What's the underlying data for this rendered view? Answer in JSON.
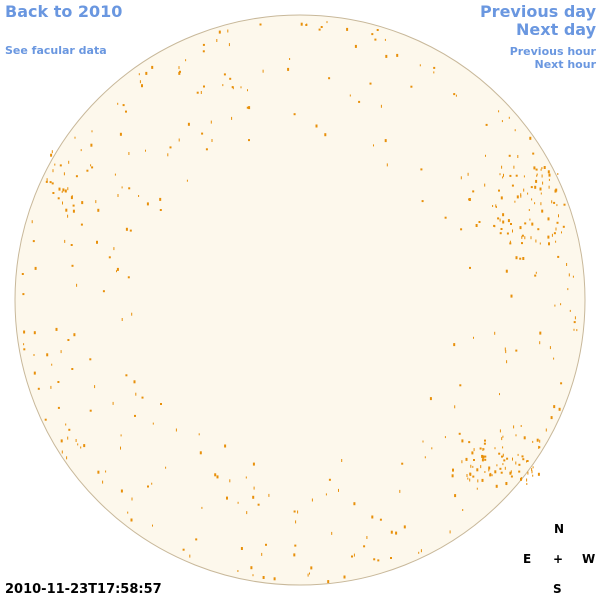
{
  "nav": {
    "back": "Back to 2010",
    "facular": "See facular data",
    "previous_day": "Previous day",
    "next_day": "Next day",
    "previous_hour": "Previous hour",
    "next_hour": "Next hour"
  },
  "timestamp": "2010-11-23T17:58:57",
  "compass": {
    "north": "N",
    "east": "E",
    "center": "+",
    "west": "W",
    "south": "S"
  }
}
